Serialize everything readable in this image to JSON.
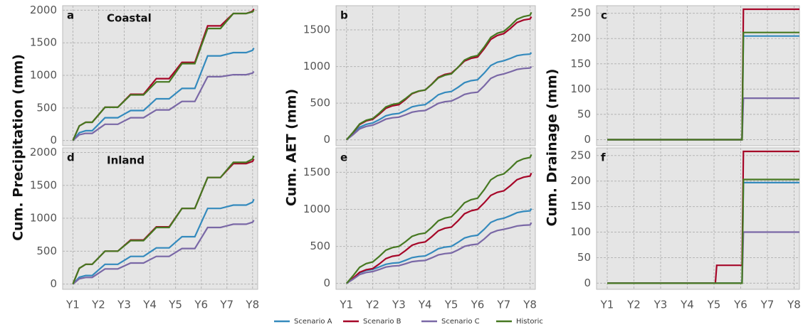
{
  "chart_data": [
    {
      "type": "line",
      "panel": "a",
      "site": "Coastal",
      "ylabel": "Cum. Precipitation (mm)",
      "x": [
        1,
        1.25,
        1.5,
        1.75,
        2,
        2.25,
        2.5,
        2.75,
        3,
        3.25,
        3.5,
        3.75,
        4,
        4.25,
        4.5,
        4.75,
        5,
        5.25,
        5.5,
        5.75,
        6,
        6.25,
        6.5,
        6.75,
        7,
        7.25,
        7.5,
        7.75,
        8,
        8.05
      ],
      "xlim": [
        0.6,
        8.2
      ],
      "xticks": [
        1,
        2,
        3,
        4,
        5,
        6,
        7,
        8
      ],
      "ylim": [
        -80,
        2070
      ],
      "yticks": [
        0,
        500,
        1000,
        1500,
        2000
      ],
      "grid": true,
      "legend": "bottom",
      "series": [
        {
          "name": "Scenario A",
          "color": "#348abd",
          "values": [
            0,
            120,
            150,
            150,
            250,
            350,
            350,
            350,
            405,
            460,
            460,
            460,
            550,
            640,
            640,
            640,
            720,
            800,
            800,
            800,
            1050,
            1300,
            1300,
            1300,
            1325,
            1350,
            1350,
            1350,
            1385,
            1420
          ]
        },
        {
          "name": "Scenario B",
          "color": "#a60628",
          "values": [
            0,
            224,
            280,
            280,
            395,
            510,
            510,
            510,
            610,
            710,
            710,
            710,
            830,
            950,
            950,
            950,
            1075,
            1200,
            1200,
            1200,
            1480,
            1760,
            1760,
            1760,
            1855,
            1950,
            1950,
            1950,
            1985,
            2020
          ]
        },
        {
          "name": "Scenario C",
          "color": "#7a68a6",
          "values": [
            0,
            88,
            110,
            110,
            180,
            250,
            250,
            250,
            300,
            350,
            350,
            350,
            410,
            470,
            470,
            470,
            535,
            600,
            600,
            600,
            790,
            980,
            980,
            980,
            995,
            1010,
            1010,
            1010,
            1035,
            1060
          ]
        },
        {
          "name": "Historic",
          "color": "#467821",
          "values": [
            0,
            224,
            280,
            280,
            395,
            510,
            510,
            510,
            605,
            700,
            700,
            700,
            800,
            900,
            900,
            900,
            1040,
            1180,
            1180,
            1180,
            1450,
            1720,
            1720,
            1720,
            1835,
            1950,
            1950,
            1950,
            1975,
            2000
          ]
        }
      ]
    },
    {
      "type": "line",
      "panel": "b",
      "ylabel": "Cum. AET (mm)",
      "x": [
        1,
        1.25,
        1.5,
        1.75,
        2,
        2.25,
        2.5,
        2.75,
        3,
        3.25,
        3.5,
        3.75,
        4,
        4.25,
        4.5,
        4.75,
        5,
        5.25,
        5.5,
        5.75,
        6,
        6.25,
        6.5,
        6.75,
        7,
        7.25,
        7.5,
        7.75,
        8,
        8.05
      ],
      "xlim": [
        0.6,
        8.2
      ],
      "xticks": [
        1,
        2,
        3,
        4,
        5,
        6,
        7,
        8
      ],
      "ylim": [
        -80,
        1830
      ],
      "yticks": [
        0,
        500,
        1000,
        1500
      ],
      "grid": true,
      "series": [
        {
          "color": "#348abd",
          "values": [
            0,
            81,
            173,
            212,
            230,
            276,
            328,
            350,
            360,
            402,
            450,
            470,
            480,
            543,
            615,
            646,
            660,
            716,
            780,
            807,
            820,
            911,
            1015,
            1059,
            1080,
            1112,
            1148,
            1163,
            1170,
            1190
          ]
        },
        {
          "color": "#a60628",
          "values": [
            0,
            98,
            210,
            258,
            280,
            350,
            430,
            464,
            480,
            550,
            630,
            664,
            680,
            761,
            853,
            892,
            910,
            987,
            1075,
            1112,
            1130,
            1242,
            1370,
            1424,
            1450,
            1520,
            1600,
            1634,
            1650,
            1680
          ]
        },
        {
          "color": "#7a68a6",
          "values": [
            0,
            70,
            150,
            184,
            200,
            239,
            283,
            301,
            310,
            342,
            378,
            393,
            400,
            446,
            498,
            520,
            530,
            572,
            620,
            640,
            650,
            738,
            838,
            880,
            900,
            928,
            960,
            974,
            980,
            1000
          ]
        },
        {
          "color": "#467821",
          "values": [
            0,
            102,
            218,
            267,
            290,
            364,
            448,
            483,
            500,
            563,
            635,
            666,
            680,
            757,
            845,
            882,
            900,
            988,
            1088,
            1130,
            1150,
            1266,
            1398,
            1454,
            1480,
            1557,
            1645,
            1682,
            1700,
            1740
          ]
        }
      ]
    },
    {
      "type": "line",
      "panel": "c",
      "ylabel": "Cum. Drainage (mm)",
      "x": [
        1,
        6.05,
        6.1,
        8.2
      ],
      "xlim": [
        0.6,
        8.2
      ],
      "xticks": [
        1,
        2,
        3,
        4,
        5,
        6,
        7,
        8
      ],
      "ylim": [
        -12,
        265
      ],
      "yticks": [
        0,
        50,
        100,
        150,
        200,
        250
      ],
      "grid": true,
      "series": [
        {
          "color": "#348abd",
          "values": [
            0,
            0,
            205,
            205
          ]
        },
        {
          "color": "#a60628",
          "values": [
            0,
            0,
            258,
            258
          ]
        },
        {
          "color": "#7a68a6",
          "values": [
            0,
            0,
            82,
            82
          ]
        },
        {
          "color": "#467821",
          "values": [
            0,
            0,
            212,
            212
          ]
        }
      ]
    },
    {
      "type": "line",
      "panel": "d",
      "site": "Inland",
      "x": [
        1,
        1.25,
        1.5,
        1.75,
        2,
        2.25,
        2.5,
        2.75,
        3,
        3.25,
        3.5,
        3.75,
        4,
        4.25,
        4.5,
        4.75,
        5,
        5.25,
        5.5,
        5.75,
        6,
        6.25,
        6.5,
        6.75,
        7,
        7.25,
        7.5,
        7.75,
        8,
        8.05
      ],
      "xlim": [
        0.6,
        8.2
      ],
      "xticks": [
        {
          "value": 1,
          "label": "Y1"
        },
        {
          "value": 2,
          "label": "Y2"
        },
        {
          "value": 3,
          "label": "Y3"
        },
        {
          "value": 4,
          "label": "Y4"
        },
        {
          "value": 5,
          "label": "Y5"
        },
        {
          "value": 6,
          "label": "Y6"
        },
        {
          "value": 7,
          "label": "Y7"
        },
        {
          "value": 8,
          "label": "Y8"
        }
      ],
      "ylim": [
        -80,
        2070
      ],
      "yticks": [
        0,
        500,
        1000,
        1500,
        2000
      ],
      "grid": true,
      "series": [
        {
          "color": "#348abd",
          "values": [
            0,
            104,
            130,
            130,
            215,
            300,
            300,
            300,
            360,
            420,
            420,
            420,
            485,
            550,
            550,
            550,
            635,
            720,
            720,
            720,
            935,
            1150,
            1150,
            1150,
            1175,
            1200,
            1200,
            1200,
            1245,
            1290
          ]
        },
        {
          "color": "#a60628",
          "values": [
            0,
            240,
            300,
            300,
            400,
            500,
            500,
            500,
            585,
            670,
            670,
            670,
            770,
            870,
            870,
            870,
            1010,
            1150,
            1150,
            1150,
            1385,
            1620,
            1620,
            1620,
            1725,
            1830,
            1830,
            1830,
            1865,
            1900
          ]
        },
        {
          "color": "#7a68a6",
          "values": [
            0,
            80,
            100,
            100,
            165,
            230,
            230,
            230,
            275,
            320,
            320,
            320,
            370,
            420,
            420,
            420,
            480,
            540,
            540,
            540,
            700,
            860,
            860,
            860,
            885,
            910,
            910,
            910,
            940,
            970
          ]
        },
        {
          "color": "#467821",
          "values": [
            0,
            240,
            300,
            300,
            400,
            500,
            500,
            500,
            580,
            660,
            660,
            660,
            760,
            860,
            860,
            860,
            1005,
            1150,
            1150,
            1150,
            1385,
            1620,
            1620,
            1620,
            1735,
            1850,
            1850,
            1850,
            1900,
            1950
          ]
        }
      ]
    },
    {
      "type": "line",
      "panel": "e",
      "x": [
        1,
        1.25,
        1.5,
        1.75,
        2,
        2.25,
        2.5,
        2.75,
        3,
        3.25,
        3.5,
        3.75,
        4,
        4.25,
        4.5,
        4.75,
        5,
        5.25,
        5.5,
        5.75,
        6,
        6.25,
        6.5,
        6.75,
        7,
        7.25,
        7.5,
        7.75,
        8,
        8.05
      ],
      "xlim": [
        0.6,
        8.2
      ],
      "xticks": [
        {
          "value": 1,
          "label": "Y1"
        },
        {
          "value": 2,
          "label": "Y2"
        },
        {
          "value": 3,
          "label": "Y3"
        },
        {
          "value": 4,
          "label": "Y4"
        },
        {
          "value": 5,
          "label": "Y5"
        },
        {
          "value": 6,
          "label": "Y6"
        },
        {
          "value": 7,
          "label": "Y7"
        },
        {
          "value": 8,
          "label": "Y8"
        }
      ],
      "ylim": [
        -80,
        1830
      ],
      "yticks": [
        0,
        500,
        1000,
        1500
      ],
      "grid": true,
      "series": [
        {
          "color": "#348abd",
          "values": [
            0,
            67,
            143,
            175,
            190,
            222,
            258,
            273,
            280,
            312,
            348,
            363,
            370,
            416,
            468,
            490,
            500,
            553,
            613,
            638,
            650,
            731,
            823,
            862,
            880,
            915,
            955,
            972,
            980,
            1010
          ]
        },
        {
          "color": "#a60628",
          "values": [
            0,
            70,
            150,
            184,
            200,
            263,
            335,
            366,
            380,
            443,
            515,
            546,
            560,
            630,
            710,
            744,
            760,
            844,
            940,
            981,
            1000,
            1088,
            1188,
            1230,
            1250,
            1320,
            1400,
            1434,
            1450,
            1490
          ]
        },
        {
          "color": "#7a68a6",
          "values": [
            0,
            56,
            120,
            147,
            160,
            188,
            220,
            234,
            240,
            265,
            293,
            304,
            310,
            345,
            385,
            402,
            410,
            452,
            500,
            520,
            530,
            600,
            680,
            714,
            730,
            751,
            775,
            785,
            790,
            820
          ]
        },
        {
          "color": "#467821",
          "values": [
            0,
            102,
            218,
            267,
            290,
            364,
            448,
            483,
            500,
            563,
            635,
            666,
            680,
            757,
            845,
            882,
            900,
            988,
            1088,
            1130,
            1150,
            1266,
            1398,
            1454,
            1480,
            1557,
            1645,
            1682,
            1700,
            1740
          ]
        }
      ]
    },
    {
      "type": "line",
      "panel": "f",
      "x": [
        1,
        5.05,
        5.1,
        6.05,
        6.1,
        8.2
      ],
      "xlim": [
        0.6,
        8.2
      ],
      "xticks": [
        {
          "value": 1,
          "label": "Y1"
        },
        {
          "value": 2,
          "label": "Y2"
        },
        {
          "value": 3,
          "label": "Y3"
        },
        {
          "value": 4,
          "label": "Y4"
        },
        {
          "value": 5,
          "label": "Y5"
        },
        {
          "value": 6,
          "label": "Y6"
        },
        {
          "value": 7,
          "label": "Y7"
        },
        {
          "value": 8,
          "label": "Y8"
        }
      ],
      "ylim": [
        -12,
        265
      ],
      "yticks": [
        0,
        50,
        100,
        150,
        200,
        250
      ],
      "grid": true,
      "series": [
        {
          "color": "#348abd",
          "values": [
            0,
            0,
            0,
            0,
            197,
            197
          ]
        },
        {
          "color": "#a60628",
          "values": [
            0,
            0,
            35,
            35,
            258,
            258
          ]
        },
        {
          "color": "#7a68a6",
          "values": [
            0,
            0,
            0,
            0,
            100,
            100
          ]
        },
        {
          "color": "#467821",
          "values": [
            0,
            0,
            0,
            0,
            203,
            203
          ]
        }
      ]
    }
  ]
}
